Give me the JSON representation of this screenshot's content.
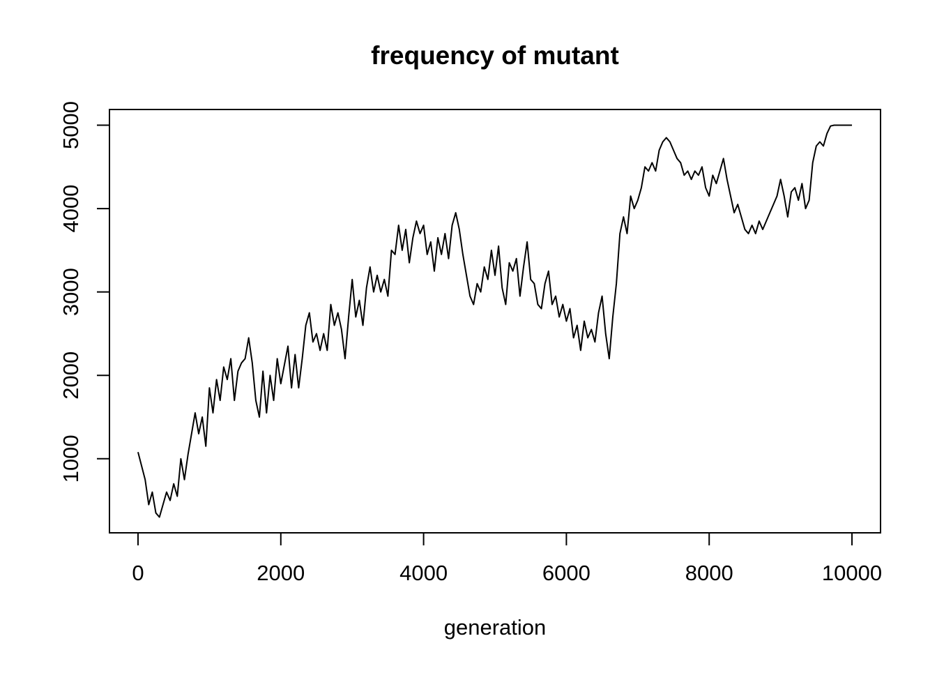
{
  "chart_data": {
    "type": "line",
    "title": "frequency of mutant",
    "xlabel": "generation",
    "x": [
      0,
      100,
      150,
      200,
      250,
      300,
      400,
      450,
      500,
      550,
      600,
      650,
      700,
      800,
      850,
      900,
      950,
      1000,
      1050,
      1100,
      1150,
      1200,
      1250,
      1300,
      1350,
      1400,
      1450,
      1500,
      1550,
      1600,
      1650,
      1700,
      1750,
      1800,
      1850,
      1900,
      1950,
      2000,
      2100,
      2150,
      2200,
      2250,
      2300,
      2350,
      2400,
      2450,
      2500,
      2550,
      2600,
      2650,
      2700,
      2750,
      2800,
      2850,
      2900,
      2950,
      3000,
      3050,
      3100,
      3150,
      3200,
      3250,
      3300,
      3350,
      3400,
      3450,
      3500,
      3550,
      3600,
      3650,
      3700,
      3750,
      3800,
      3850,
      3900,
      3950,
      4000,
      4050,
      4100,
      4150,
      4200,
      4250,
      4300,
      4350,
      4400,
      4450,
      4500,
      4550,
      4600,
      4650,
      4700,
      4750,
      4800,
      4850,
      4900,
      4950,
      5000,
      5050,
      5100,
      5150,
      5200,
      5250,
      5300,
      5350,
      5400,
      5450,
      5500,
      5550,
      5600,
      5650,
      5700,
      5750,
      5800,
      5850,
      5900,
      5950,
      6000,
      6050,
      6100,
      6150,
      6200,
      6250,
      6300,
      6350,
      6400,
      6450,
      6500,
      6550,
      6600,
      6650,
      6700,
      6750,
      6800,
      6850,
      6900,
      6950,
      7000,
      7050,
      7100,
      7150,
      7200,
      7250,
      7300,
      7350,
      7400,
      7450,
      7500,
      7550,
      7600,
      7650,
      7700,
      7750,
      7800,
      7850,
      7900,
      7950,
      8000,
      8050,
      8100,
      8150,
      8200,
      8250,
      8300,
      8350,
      8400,
      8450,
      8500,
      8550,
      8600,
      8650,
      8700,
      8750,
      8800,
      8850,
      8900,
      8950,
      9000,
      9050,
      9100,
      9150,
      9200,
      9250,
      9300,
      9350,
      9400,
      9450,
      9500,
      9550,
      9600,
      9650,
      9700,
      9750,
      10000
    ],
    "values": [
      1080,
      750,
      450,
      600,
      350,
      300,
      600,
      500,
      700,
      550,
      1000,
      750,
      1050,
      1550,
      1300,
      1500,
      1150,
      1850,
      1550,
      1950,
      1700,
      2100,
      1950,
      2200,
      1700,
      2050,
      2150,
      2200,
      2450,
      2150,
      1700,
      1500,
      2050,
      1550,
      2000,
      1700,
      2200,
      1900,
      2350,
      1850,
      2250,
      1850,
      2200,
      2600,
      2750,
      2400,
      2500,
      2300,
      2500,
      2300,
      2850,
      2600,
      2750,
      2550,
      2200,
      2700,
      3150,
      2700,
      2900,
      2600,
      3050,
      3300,
      3000,
      3200,
      3000,
      3150,
      2950,
      3500,
      3450,
      3800,
      3500,
      3750,
      3350,
      3650,
      3850,
      3700,
      3800,
      3450,
      3600,
      3250,
      3650,
      3450,
      3700,
      3400,
      3800,
      3950,
      3750,
      3450,
      3200,
      2950,
      2850,
      3100,
      3000,
      3300,
      3150,
      3500,
      3200,
      3550,
      3050,
      2850,
      3350,
      3250,
      3400,
      2950,
      3300,
      3600,
      3150,
      3100,
      2850,
      2800,
      3100,
      3250,
      2850,
      2950,
      2700,
      2850,
      2650,
      2800,
      2450,
      2600,
      2300,
      2650,
      2450,
      2550,
      2400,
      2750,
      2950,
      2500,
      2200,
      2700,
      3100,
      3700,
      3900,
      3700,
      4150,
      4000,
      4100,
      4250,
      4500,
      4450,
      4550,
      4450,
      4700,
      4800,
      4850,
      4800,
      4700,
      4600,
      4550,
      4400,
      4450,
      4350,
      4450,
      4400,
      4500,
      4250,
      4150,
      4400,
      4300,
      4450,
      4600,
      4350,
      4150,
      3950,
      4050,
      3900,
      3750,
      3700,
      3800,
      3700,
      3850,
      3750,
      3850,
      3950,
      4050,
      4150,
      4350,
      4150,
      3900,
      4200,
      4250,
      4100,
      4300,
      4000,
      4100,
      4550,
      4750,
      4800,
      4750,
      4900,
      4990,
      5000,
      5000
    ],
    "color": "#000000",
    "xlim": [
      -400,
      10400
    ],
    "xticks": [
      0,
      2000,
      4000,
      6000,
      8000,
      10000
    ],
    "ylim": [
      112,
      5188
    ],
    "yticks": [
      1000,
      2000,
      3000,
      4000,
      5000
    ]
  }
}
